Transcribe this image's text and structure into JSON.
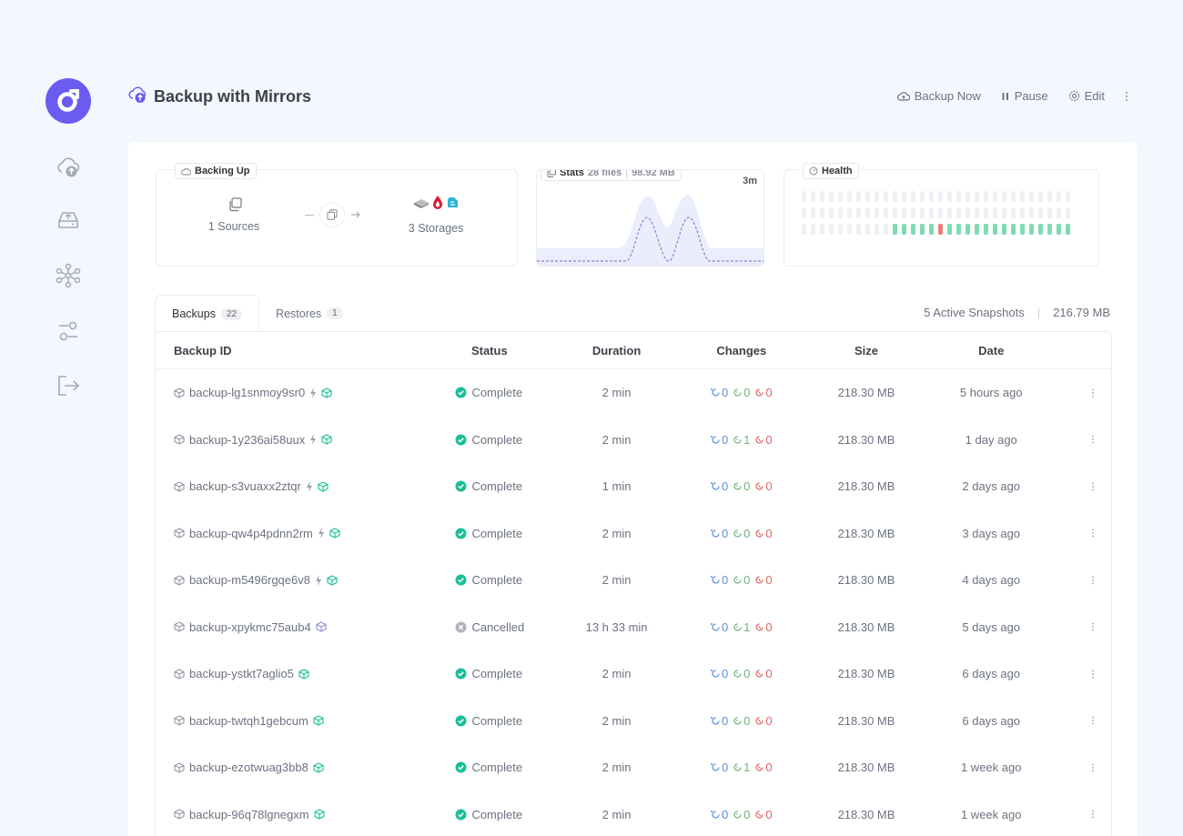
{
  "header": {
    "title": "Backup with Mirrors",
    "actions": {
      "backup_now": "Backup Now",
      "pause": "Pause",
      "edit": "Edit"
    }
  },
  "colors": {
    "accent": "#6a5cf0",
    "ok": "#1bbf96",
    "healthy": "#7ddcb0",
    "failed": "#ec7e79"
  },
  "backing_up": {
    "tag": "Backing Up",
    "sources": "1 Sources",
    "storages": "3 Storages"
  },
  "stats": {
    "tag": "Stats",
    "files": "28 files",
    "size": "98.92 MB",
    "sep": "|",
    "time_range": "3m"
  },
  "health": {
    "tag": "Health",
    "rows": [
      "eeeeeeeeeeeeeeeeeeeeeeeeeeeeeeeeeeeeeeeeeeee",
      "eeeeeeeeeeeeeeeeeeeeeeeeeeeeeeeeeeeeeeeeeeee",
      "eeeeeeeeeegggggbgggggggggggggggggggggggggggg"
    ]
  },
  "tabs": [
    {
      "label": "Backups",
      "count": "22"
    },
    {
      "label": "Restores",
      "count": "1"
    }
  ],
  "snapshots": {
    "active": "5 Active Snapshots",
    "sep": "|",
    "total": "216.79 MB"
  },
  "table": {
    "headers": {
      "id": "Backup ID",
      "status": "Status",
      "duration": "Duration",
      "changes": "Changes",
      "size": "Size",
      "date": "Date"
    },
    "rows": [
      {
        "id": "backup-lg1snmoy9sr0",
        "bolt": true,
        "status": "Complete",
        "ok": true,
        "duration": "2 min",
        "added": "0",
        "modified": "0",
        "deleted": "0",
        "size": "218.30 MB",
        "date": "5 hours ago"
      },
      {
        "id": "backup-1y236ai58uux",
        "bolt": true,
        "status": "Complete",
        "ok": true,
        "duration": "2 min",
        "added": "0",
        "modified": "1",
        "deleted": "0",
        "size": "218.30 MB",
        "date": "1 day ago"
      },
      {
        "id": "backup-s3vuaxx2ztqr",
        "bolt": true,
        "status": "Complete",
        "ok": true,
        "duration": "1 min",
        "added": "0",
        "modified": "0",
        "deleted": "0",
        "size": "218.30 MB",
        "date": "2 days ago"
      },
      {
        "id": "backup-qw4p4pdnn2rm",
        "bolt": true,
        "status": "Complete",
        "ok": true,
        "duration": "2 min",
        "added": "0",
        "modified": "0",
        "deleted": "0",
        "size": "218.30 MB",
        "date": "3 days ago"
      },
      {
        "id": "backup-m5496rgqe6v8",
        "bolt": true,
        "status": "Complete",
        "ok": true,
        "duration": "2 min",
        "added": "0",
        "modified": "0",
        "deleted": "0",
        "size": "218.30 MB",
        "date": "4 days ago"
      },
      {
        "id": "backup-xpykmc75aub4",
        "bolt": false,
        "status": "Cancelled",
        "ok": false,
        "duration": "13 h 33 min",
        "added": "0",
        "modified": "1",
        "deleted": "0",
        "size": "218.30 MB",
        "date": "5 days ago"
      },
      {
        "id": "backup-ystkt7aglio5",
        "bolt": false,
        "status": "Complete",
        "ok": true,
        "duration": "2 min",
        "added": "0",
        "modified": "0",
        "deleted": "0",
        "size": "218.30 MB",
        "date": "6 days ago"
      },
      {
        "id": "backup-twtqh1gebcum",
        "bolt": false,
        "status": "Complete",
        "ok": true,
        "duration": "2 min",
        "added": "0",
        "modified": "0",
        "deleted": "0",
        "size": "218.30 MB",
        "date": "6 days ago"
      },
      {
        "id": "backup-ezotwuag3bb8",
        "bolt": false,
        "status": "Complete",
        "ok": true,
        "duration": "2 min",
        "added": "0",
        "modified": "1",
        "deleted": "0",
        "size": "218.30 MB",
        "date": "1 week ago"
      },
      {
        "id": "backup-96q78lgnegxm",
        "bolt": false,
        "status": "Complete",
        "ok": true,
        "duration": "2 min",
        "added": "0",
        "modified": "0",
        "deleted": "0",
        "size": "218.30 MB",
        "date": "1 week ago"
      }
    ]
  }
}
